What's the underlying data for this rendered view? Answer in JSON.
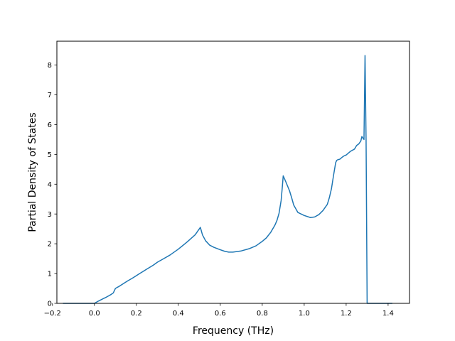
{
  "chart_data": {
    "type": "line",
    "title": "",
    "xlabel": "Frequency (THz)",
    "ylabel": "Partial Density of States",
    "xlim": [
      -0.179,
      1.502
    ],
    "ylim": [
      0,
      8.8
    ],
    "grid": false,
    "x_ticks": [
      -0.2,
      0.0,
      0.2,
      0.4,
      0.6,
      0.8,
      1.0,
      1.2,
      1.4
    ],
    "x_tick_labels": [
      "−0.2",
      "0.0",
      "0.2",
      "0.4",
      "0.6",
      "0.8",
      "1.0",
      "1.2",
      "1.4"
    ],
    "y_ticks": [
      0,
      1,
      2,
      3,
      4,
      5,
      6,
      7,
      8
    ],
    "y_tick_labels": [
      "0",
      "1",
      "2",
      "3",
      "4",
      "5",
      "6",
      "7",
      "8"
    ],
    "line_color": "#1f77b4",
    "series": [
      {
        "x": [
          -0.15,
          -0.1,
          -0.05,
          -0.01,
          0.0,
          0.02,
          0.04,
          0.06,
          0.08,
          0.09,
          0.1,
          0.12,
          0.14,
          0.16,
          0.18,
          0.2,
          0.22,
          0.25,
          0.28,
          0.3,
          0.33,
          0.36,
          0.4,
          0.44,
          0.48,
          0.505,
          0.515,
          0.53,
          0.55,
          0.57,
          0.6,
          0.62,
          0.64,
          0.66,
          0.7,
          0.74,
          0.77,
          0.8,
          0.82,
          0.84,
          0.86,
          0.87,
          0.88,
          0.89,
          0.895,
          0.9,
          0.91,
          0.92,
          0.93,
          0.94,
          0.95,
          0.97,
          1.0,
          1.03,
          1.05,
          1.07,
          1.09,
          1.1,
          1.11,
          1.12,
          1.13,
          1.14,
          1.15,
          1.155,
          1.16,
          1.17,
          1.18,
          1.19,
          1.2,
          1.22,
          1.24,
          1.25,
          1.26,
          1.27,
          1.275,
          1.28,
          1.285,
          1.29,
          1.295,
          1.3,
          1.32,
          1.35,
          1.38,
          1.42
        ],
        "y": [
          0.0,
          0.0,
          0.0,
          0.0,
          0.0,
          0.08,
          0.15,
          0.22,
          0.3,
          0.35,
          0.5,
          0.58,
          0.67,
          0.76,
          0.84,
          0.93,
          1.02,
          1.15,
          1.28,
          1.38,
          1.5,
          1.62,
          1.82,
          2.05,
          2.3,
          2.55,
          2.3,
          2.1,
          1.95,
          1.88,
          1.8,
          1.75,
          1.72,
          1.72,
          1.76,
          1.84,
          1.93,
          2.08,
          2.2,
          2.38,
          2.62,
          2.78,
          3.02,
          3.45,
          3.85,
          4.28,
          4.12,
          3.95,
          3.78,
          3.55,
          3.3,
          3.05,
          2.95,
          2.88,
          2.9,
          2.98,
          3.12,
          3.22,
          3.32,
          3.55,
          3.85,
          4.3,
          4.72,
          4.8,
          4.82,
          4.84,
          4.9,
          4.95,
          4.98,
          5.1,
          5.18,
          5.3,
          5.35,
          5.45,
          5.6,
          5.55,
          5.5,
          8.32,
          5.5,
          0.0,
          0.0,
          0.0,
          0.0,
          0.0
        ]
      }
    ]
  }
}
